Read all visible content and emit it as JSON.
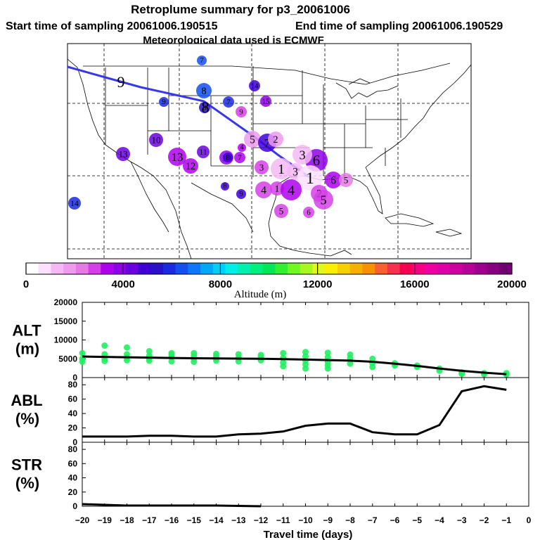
{
  "header": {
    "title": "Retroplume summary for p3_20061006",
    "start_label": "Start time of sampling 20061006.190515",
    "end_label": "End time of sampling 20061006.190529",
    "met_label": "Meteorological data used is ECMWF"
  },
  "colorbar": {
    "label": "Altitude (m)",
    "ticks": [
      "0",
      "4000",
      "8000",
      "12000",
      "16000",
      "20000"
    ],
    "colors": [
      "#ffffff",
      "#fde0fd",
      "#f4b8f4",
      "#ee9bee",
      "#e57ae5",
      "#d63fe8",
      "#b000f0",
      "#8f00e8",
      "#6a00e0",
      "#3f00d8",
      "#2a10c8",
      "#1a2ae0",
      "#1450f0",
      "#0a78f8",
      "#00a8f8",
      "#00d0f8",
      "#00f0e8",
      "#00f0b0",
      "#00f080",
      "#00e858",
      "#30f030",
      "#70f820",
      "#a8f820",
      "#e0f820",
      "#f8f000",
      "#f8d000",
      "#f8b000",
      "#f89000",
      "#f86030",
      "#f83050",
      "#f80050",
      "#f80080",
      "#f000a0",
      "#e000a8",
      "#d000a0",
      "#b80098",
      "#a00090",
      "#880080",
      "#700070"
    ]
  },
  "map": {
    "points": [
      {
        "label": "7",
        "alt_m": 6500
      },
      {
        "label": "8",
        "alt_m": 6300
      },
      {
        "label": "9",
        "alt_m": 5800
      },
      {
        "label": "8",
        "alt_m": 5200
      },
      {
        "label": "7",
        "alt_m": 6000
      },
      {
        "label": "14",
        "alt_m": 4600
      },
      {
        "label": "15",
        "alt_m": 3800
      },
      {
        "label": "9",
        "alt_m": 2600
      },
      {
        "label": "5",
        "alt_m": 1800
      },
      {
        "label": "7",
        "alt_m": 4800
      },
      {
        "label": "3",
        "alt_m": 2800
      },
      {
        "label": "2",
        "alt_m": 1500
      },
      {
        "label": "10",
        "alt_m": 4300
      },
      {
        "label": "11",
        "alt_m": 4100
      },
      {
        "label": "13",
        "alt_m": 3200
      },
      {
        "label": "12",
        "alt_m": 3000
      },
      {
        "label": "13",
        "alt_m": 4400
      },
      {
        "label": "10",
        "alt_m": 3600
      },
      {
        "label": "8",
        "alt_m": 4600
      },
      {
        "label": "7",
        "alt_m": 3300
      },
      {
        "label": "4",
        "alt_m": 3200
      },
      {
        "label": "1",
        "alt_m": 900
      },
      {
        "label": "6",
        "alt_m": 3600
      },
      {
        "label": "3",
        "alt_m": 1200
      },
      {
        "label": "3",
        "alt_m": 800
      },
      {
        "label": "1",
        "alt_m": 500
      },
      {
        "label": "4",
        "alt_m": 2400
      },
      {
        "label": "1",
        "alt_m": 2700
      },
      {
        "label": "4",
        "alt_m": 3000
      },
      {
        "label": "2",
        "alt_m": 2600
      },
      {
        "label": "6",
        "alt_m": 2900
      },
      {
        "label": "5",
        "alt_m": 2200
      },
      {
        "label": "5",
        "alt_m": 2800
      },
      {
        "label": "5",
        "alt_m": 2600
      },
      {
        "label": "6",
        "alt_m": 2400
      },
      {
        "label": "8",
        "alt_m": 4700
      },
      {
        "label": "9",
        "alt_m": 4500
      },
      {
        "label": "14",
        "alt_m": 6000
      }
    ],
    "trajectory_labels": [
      {
        "label": "9"
      },
      {
        "label": "8"
      }
    ]
  },
  "chart_data": [
    {
      "type": "line",
      "title": "ALT (m)",
      "ylabel_lines": [
        "ALT",
        "(m)"
      ],
      "ylim": [
        0,
        20000
      ],
      "yticks": [
        "0",
        "5000",
        "10000",
        "15000",
        "20000"
      ],
      "x": [
        -20,
        -19,
        -18,
        -17,
        -16,
        -15,
        -14,
        -13,
        -12,
        -11,
        -10,
        -9,
        -8,
        -7,
        -6,
        -5,
        -4,
        -3,
        -2,
        -1
      ],
      "series": [
        {
          "name": "mean altitude",
          "values": [
            5600,
            5500,
            5400,
            5300,
            5200,
            5150,
            5100,
            5050,
            5000,
            4900,
            4800,
            4650,
            4500,
            4200,
            3700,
            3100,
            2400,
            1800,
            1300,
            900
          ]
        },
        {
          "name": "particle altitudes",
          "points": [
            [
              -20,
              6500
            ],
            [
              -20,
              5000
            ],
            [
              -20,
              4200
            ],
            [
              -19,
              8500
            ],
            [
              -19,
              6200
            ],
            [
              -19,
              5000
            ],
            [
              -19,
              4400
            ],
            [
              -18,
              8000
            ],
            [
              -18,
              6200
            ],
            [
              -18,
              5300
            ],
            [
              -18,
              4600
            ],
            [
              -17,
              7000
            ],
            [
              -17,
              5800
            ],
            [
              -17,
              5200
            ],
            [
              -17,
              4500
            ],
            [
              -16,
              6500
            ],
            [
              -16,
              6000
            ],
            [
              -16,
              5400
            ],
            [
              -16,
              4300
            ],
            [
              -15,
              6500
            ],
            [
              -15,
              5800
            ],
            [
              -15,
              5000
            ],
            [
              -15,
              4200
            ],
            [
              -14,
              6300
            ],
            [
              -14,
              5700
            ],
            [
              -14,
              5100
            ],
            [
              -14,
              4500
            ],
            [
              -13,
              6200
            ],
            [
              -13,
              5300
            ],
            [
              -13,
              4300
            ],
            [
              -12,
              6000
            ],
            [
              -12,
              5400
            ],
            [
              -12,
              4600
            ],
            [
              -11,
              6500
            ],
            [
              -11,
              5200
            ],
            [
              -11,
              4000
            ],
            [
              -11,
              3000
            ],
            [
              -10,
              6800
            ],
            [
              -10,
              5600
            ],
            [
              -10,
              4500
            ],
            [
              -10,
              3500
            ],
            [
              -10,
              2400
            ],
            [
              -9,
              6600
            ],
            [
              -9,
              5400
            ],
            [
              -9,
              4200
            ],
            [
              -9,
              3300
            ],
            [
              -9,
              2400
            ],
            [
              -8,
              6100
            ],
            [
              -8,
              5100
            ],
            [
              -8,
              3700
            ],
            [
              -7,
              5000
            ],
            [
              -7,
              3800
            ],
            [
              -7,
              2800
            ],
            [
              -6,
              3800
            ],
            [
              -6,
              3200
            ],
            [
              -5,
              3200
            ],
            [
              -5,
              2800
            ],
            [
              -4,
              2400
            ],
            [
              -4,
              1800
            ],
            [
              -3,
              1400
            ],
            [
              -3,
              1000
            ],
            [
              -2,
              1200
            ],
            [
              -2,
              900
            ],
            [
              -1,
              1200
            ],
            [
              -1,
              800
            ]
          ]
        }
      ]
    },
    {
      "type": "line",
      "title": "ABL (%)",
      "ylabel_lines": [
        "ABL",
        "(%)"
      ],
      "ylim": [
        0,
        90
      ],
      "yticks": [
        "0",
        "20",
        "40",
        "60",
        "80"
      ],
      "x": [
        -20,
        -19,
        -18,
        -17,
        -16,
        -15,
        -14,
        -13,
        -12,
        -11,
        -10,
        -9,
        -8,
        -7,
        -6,
        -5,
        -4,
        -3,
        -2,
        -1
      ],
      "series": [
        {
          "name": "ABL",
          "values": [
            8,
            8,
            8,
            9,
            9,
            8,
            8,
            11,
            12,
            15,
            23,
            26,
            26,
            14,
            11,
            11,
            24,
            71,
            78,
            73
          ]
        }
      ]
    },
    {
      "type": "line",
      "title": "STR (%)",
      "ylabel_lines": [
        "STR",
        "(%)"
      ],
      "ylim": [
        0,
        90
      ],
      "yticks": [
        "0",
        "20",
        "40",
        "60",
        "80"
      ],
      "x": [
        -20,
        -19,
        -18,
        -17,
        -16,
        -15,
        -14,
        -13,
        -12
      ],
      "series": [
        {
          "name": "STR",
          "values": [
            3,
            2,
            1,
            1,
            1,
            1,
            1,
            0.5,
            0
          ]
        }
      ]
    }
  ],
  "xaxis": {
    "label": "Travel time (days)",
    "ticks": [
      "−20",
      "−19",
      "−18",
      "−17",
      "−16",
      "−15",
      "−14",
      "−13",
      "−12",
      "−11",
      "−10",
      "−9",
      "−8",
      "−7",
      "−6",
      "−5",
      "−4",
      "−3",
      "−2",
      "−1",
      "0"
    ]
  }
}
